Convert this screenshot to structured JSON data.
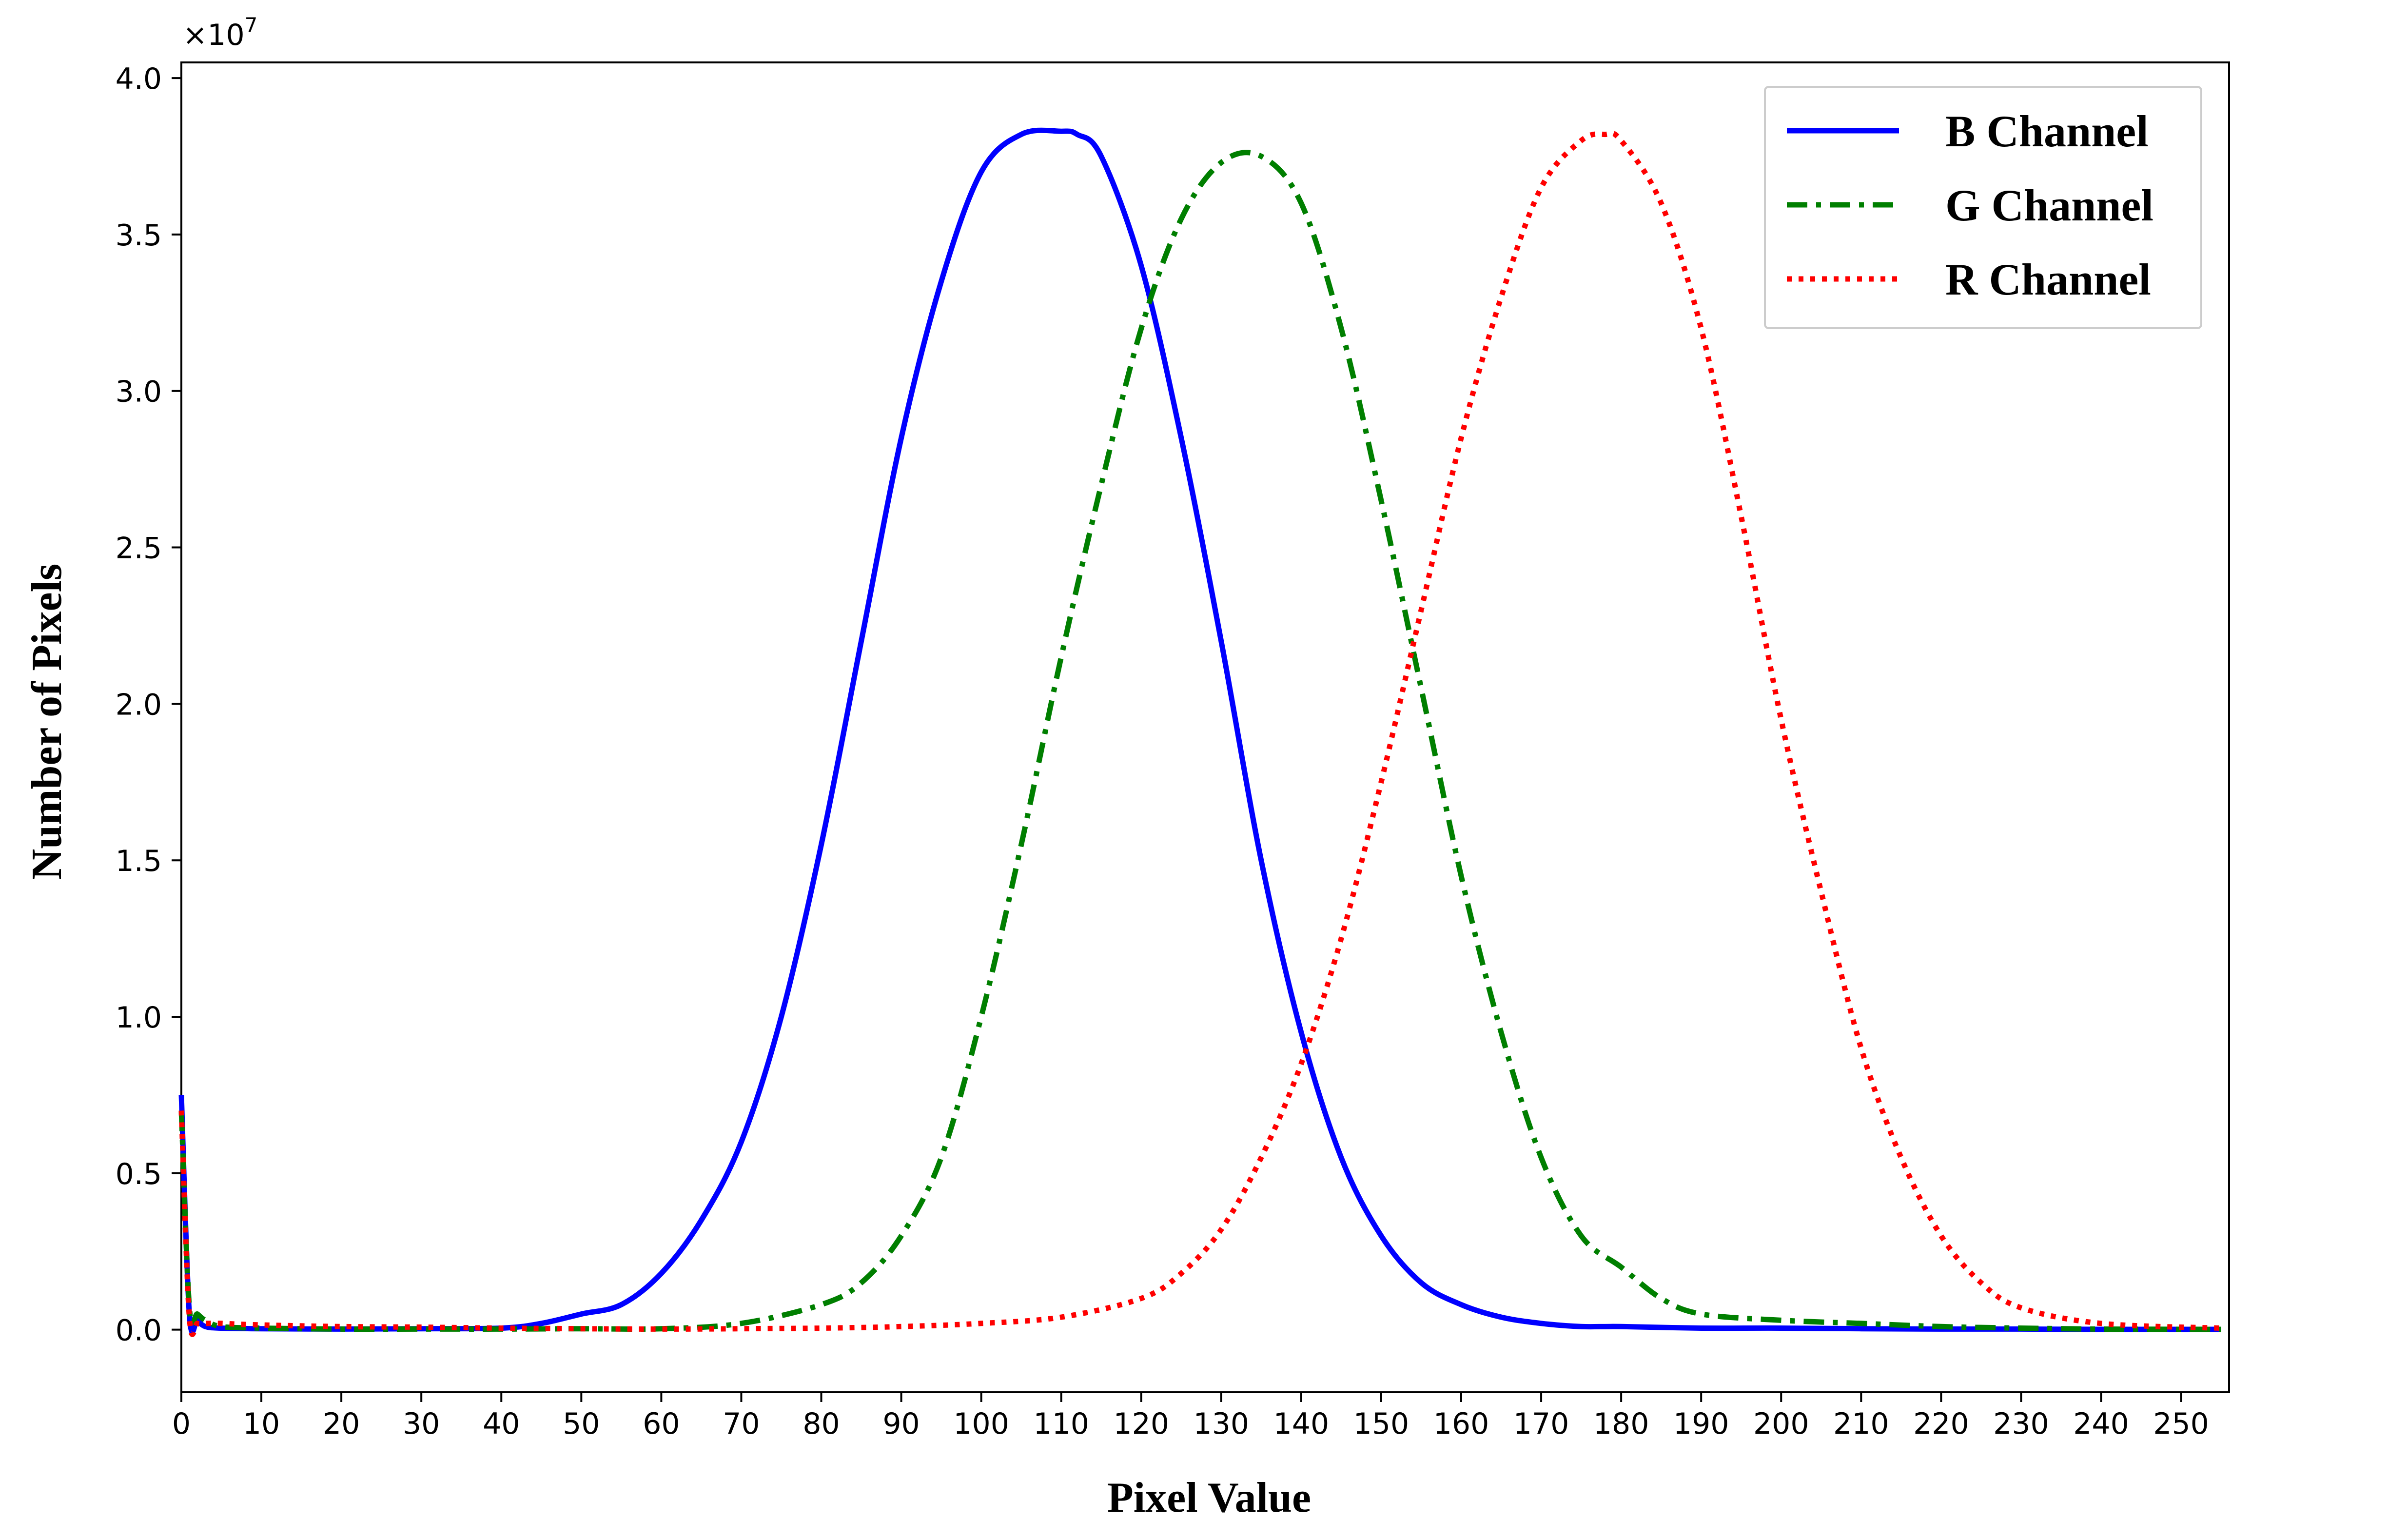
{
  "chart_data": {
    "type": "line",
    "title": "",
    "xlabel": "Pixel Value",
    "ylabel": "Number of Pixels",
    "y_offset_label": "×10",
    "y_offset_exponent": "7",
    "xlim": [
      0,
      256
    ],
    "ylim": [
      -0.2,
      4.05
    ],
    "y_scale": 10000000,
    "xticks": [
      0,
      10,
      20,
      30,
      40,
      50,
      60,
      70,
      80,
      90,
      100,
      110,
      120,
      130,
      140,
      150,
      160,
      170,
      180,
      190,
      200,
      210,
      220,
      230,
      240,
      250
    ],
    "yticks": [
      0.0,
      0.5,
      1.0,
      1.5,
      2.0,
      2.5,
      3.0,
      3.5,
      4.0
    ],
    "ytick_labels": [
      "0.0",
      "0.5",
      "1.0",
      "1.5",
      "2.0",
      "2.5",
      "3.0",
      "3.5",
      "4.0"
    ],
    "grid": false,
    "legend_position": "top-right",
    "series": [
      {
        "name": "B Channel",
        "color": "#0000ff",
        "style": "solid",
        "x": [
          0,
          1,
          2,
          3,
          5,
          10,
          20,
          30,
          40,
          45,
          50,
          55,
          60,
          65,
          70,
          75,
          80,
          85,
          90,
          95,
          100,
          105,
          110,
          112,
          115,
          120,
          125,
          130,
          135,
          140,
          145,
          150,
          155,
          160,
          165,
          170,
          175,
          180,
          190,
          200,
          210,
          220,
          230,
          240,
          250,
          255
        ],
        "y": [
          0.75,
          0.05,
          0.03,
          0.01,
          0.005,
          0.003,
          0.002,
          0.003,
          0.005,
          0.02,
          0.05,
          0.08,
          0.18,
          0.35,
          0.6,
          1.0,
          1.55,
          2.2,
          2.85,
          3.35,
          3.7,
          3.82,
          3.83,
          3.82,
          3.75,
          3.4,
          2.85,
          2.2,
          1.5,
          0.95,
          0.55,
          0.3,
          0.15,
          0.08,
          0.04,
          0.02,
          0.01,
          0.01,
          0.005,
          0.005,
          0.003,
          0.002,
          0.002,
          0.001,
          0.001,
          0.001
        ]
      },
      {
        "name": "G Channel",
        "color": "#007f00",
        "style": "dashdot",
        "x": [
          0,
          1,
          2,
          3,
          5,
          10,
          20,
          30,
          40,
          50,
          60,
          70,
          80,
          85,
          90,
          95,
          100,
          105,
          110,
          115,
          120,
          125,
          130,
          135,
          140,
          145,
          150,
          155,
          160,
          165,
          170,
          175,
          180,
          185,
          190,
          200,
          210,
          220,
          230,
          240,
          255
        ],
        "y": [
          0.7,
          0.07,
          0.05,
          0.03,
          0.01,
          0.005,
          0.002,
          0.002,
          0.002,
          0.003,
          0.003,
          0.02,
          0.08,
          0.15,
          0.3,
          0.55,
          1.0,
          1.55,
          2.15,
          2.7,
          3.2,
          3.55,
          3.73,
          3.75,
          3.6,
          3.2,
          2.65,
          2.05,
          1.45,
          0.95,
          0.55,
          0.3,
          0.2,
          0.1,
          0.05,
          0.03,
          0.02,
          0.01,
          0.005,
          0.002,
          0.001
        ]
      },
      {
        "name": "R Channel",
        "color": "#ff0000",
        "style": "dotted",
        "x": [
          0,
          1,
          2,
          3,
          5,
          10,
          20,
          30,
          40,
          50,
          60,
          70,
          80,
          90,
          100,
          110,
          120,
          125,
          130,
          135,
          140,
          145,
          150,
          155,
          160,
          165,
          170,
          175,
          178,
          180,
          185,
          190,
          195,
          200,
          205,
          210,
          215,
          220,
          225,
          230,
          240,
          255
        ],
        "y": [
          0.7,
          0.04,
          0.02,
          0.02,
          0.02,
          0.015,
          0.01,
          0.008,
          0.005,
          0.003,
          0.002,
          0.003,
          0.005,
          0.01,
          0.02,
          0.04,
          0.1,
          0.18,
          0.32,
          0.55,
          0.85,
          1.25,
          1.75,
          2.3,
          2.85,
          3.3,
          3.65,
          3.8,
          3.82,
          3.8,
          3.6,
          3.2,
          2.6,
          1.95,
          1.4,
          0.9,
          0.55,
          0.3,
          0.15,
          0.07,
          0.02,
          0.005
        ]
      }
    ]
  }
}
